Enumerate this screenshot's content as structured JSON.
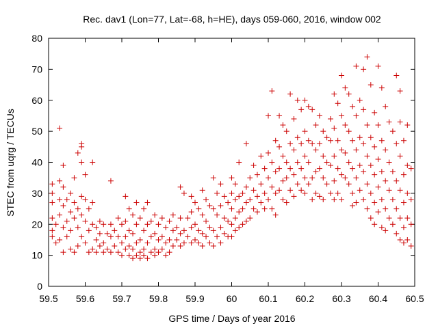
{
  "chart_data": {
    "type": "scatter",
    "title": "Rec. dav1 (Lon=77, Lat=-68, h=HE), days 059-060, 2016, window 002",
    "xlabel": "GPS time / Days of year 2016",
    "ylabel": "STEC from uqrg / TECUs",
    "xlim": [
      59.5,
      60.5
    ],
    "ylim": [
      0,
      80
    ],
    "xticks": [
      "59.5",
      "59.6",
      "59.7",
      "59.8",
      "59.9",
      "60",
      "60.1",
      "60.2",
      "60.3",
      "60.4",
      "60.5"
    ],
    "yticks": [
      "0",
      "10",
      "20",
      "30",
      "40",
      "50",
      "60",
      "70",
      "80"
    ],
    "grid": false,
    "legend": "none",
    "marker": "plus",
    "color": "#cc0000",
    "points": [
      [
        59.51,
        33
      ],
      [
        59.51,
        30
      ],
      [
        59.51,
        27
      ],
      [
        59.51,
        22
      ],
      [
        59.51,
        18
      ],
      [
        59.51,
        16
      ],
      [
        59.52,
        20
      ],
      [
        59.52,
        14
      ],
      [
        59.53,
        51
      ],
      [
        59.53,
        34
      ],
      [
        59.53,
        28
      ],
      [
        59.53,
        23
      ],
      [
        59.53,
        15
      ],
      [
        59.54,
        39
      ],
      [
        59.54,
        32
      ],
      [
        59.54,
        26
      ],
      [
        59.54,
        19
      ],
      [
        59.54,
        11
      ],
      [
        59.55,
        28
      ],
      [
        59.55,
        21
      ],
      [
        59.55,
        16
      ],
      [
        59.56,
        30
      ],
      [
        59.56,
        24
      ],
      [
        59.56,
        18
      ],
      [
        59.56,
        12
      ],
      [
        59.57,
        35
      ],
      [
        59.57,
        27
      ],
      [
        59.57,
        22
      ],
      [
        59.57,
        11
      ],
      [
        59.58,
        43
      ],
      [
        59.58,
        25
      ],
      [
        59.58,
        19
      ],
      [
        59.58,
        13
      ],
      [
        59.59,
        46
      ],
      [
        59.59,
        45
      ],
      [
        59.59,
        40
      ],
      [
        59.59,
        29
      ],
      [
        59.59,
        23
      ],
      [
        59.59,
        16
      ],
      [
        59.6,
        36
      ],
      [
        59.6,
        28
      ],
      [
        59.6,
        21
      ],
      [
        59.6,
        14
      ],
      [
        59.61,
        25
      ],
      [
        59.61,
        18
      ],
      [
        59.61,
        11
      ],
      [
        59.62,
        40
      ],
      [
        59.62,
        27
      ],
      [
        59.62,
        20
      ],
      [
        59.62,
        12
      ],
      [
        59.63,
        19
      ],
      [
        59.63,
        15
      ],
      [
        59.63,
        11
      ],
      [
        59.64,
        21
      ],
      [
        59.64,
        17
      ],
      [
        59.64,
        13
      ],
      [
        59.65,
        20
      ],
      [
        59.65,
        14
      ],
      [
        59.65,
        11
      ],
      [
        59.66,
        17
      ],
      [
        59.66,
        12
      ],
      [
        59.67,
        34
      ],
      [
        59.67,
        20
      ],
      [
        59.67,
        16
      ],
      [
        59.67,
        11
      ],
      [
        59.68,
        18
      ],
      [
        59.68,
        13
      ],
      [
        59.69,
        22
      ],
      [
        59.69,
        16
      ],
      [
        59.69,
        11
      ],
      [
        59.7,
        20
      ],
      [
        59.7,
        14
      ],
      [
        59.7,
        10
      ],
      [
        59.71,
        29
      ],
      [
        59.71,
        21
      ],
      [
        59.71,
        16
      ],
      [
        59.71,
        12
      ],
      [
        59.72,
        25
      ],
      [
        59.72,
        18
      ],
      [
        59.72,
        13
      ],
      [
        59.72,
        10
      ],
      [
        59.73,
        23
      ],
      [
        59.73,
        17
      ],
      [
        59.73,
        12
      ],
      [
        59.73,
        9
      ],
      [
        59.74,
        27
      ],
      [
        59.74,
        20
      ],
      [
        59.74,
        14
      ],
      [
        59.74,
        10
      ],
      [
        59.75,
        22
      ],
      [
        59.75,
        15
      ],
      [
        59.75,
        11
      ],
      [
        59.75,
        9
      ],
      [
        59.76,
        25
      ],
      [
        59.76,
        18
      ],
      [
        59.76,
        12
      ],
      [
        59.76,
        10
      ],
      [
        59.77,
        27
      ],
      [
        59.77,
        20
      ],
      [
        59.77,
        14
      ],
      [
        59.77,
        9
      ],
      [
        59.78,
        21
      ],
      [
        59.78,
        16
      ],
      [
        59.78,
        11
      ],
      [
        59.79,
        23
      ],
      [
        59.79,
        17
      ],
      [
        59.79,
        12
      ],
      [
        59.79,
        10
      ],
      [
        59.8,
        20
      ],
      [
        59.8,
        15
      ],
      [
        59.8,
        11
      ],
      [
        59.81,
        22
      ],
      [
        59.81,
        16
      ],
      [
        59.81,
        12
      ],
      [
        59.82,
        19
      ],
      [
        59.82,
        14
      ],
      [
        59.82,
        10
      ],
      [
        59.83,
        21
      ],
      [
        59.83,
        15
      ],
      [
        59.83,
        11
      ],
      [
        59.84,
        23
      ],
      [
        59.84,
        18
      ],
      [
        59.84,
        13
      ],
      [
        59.85,
        19
      ],
      [
        59.85,
        15
      ],
      [
        59.86,
        32
      ],
      [
        59.86,
        22
      ],
      [
        59.86,
        17
      ],
      [
        59.86,
        13
      ],
      [
        59.87,
        30
      ],
      [
        59.87,
        18
      ],
      [
        59.87,
        14
      ],
      [
        59.88,
        22
      ],
      [
        59.88,
        16
      ],
      [
        59.89,
        29
      ],
      [
        59.89,
        24
      ],
      [
        59.89,
        19
      ],
      [
        59.89,
        14
      ],
      [
        59.9,
        27
      ],
      [
        59.9,
        20
      ],
      [
        59.9,
        15
      ],
      [
        59.91,
        25
      ],
      [
        59.91,
        18
      ],
      [
        59.91,
        14
      ],
      [
        59.92,
        31
      ],
      [
        59.92,
        23
      ],
      [
        59.92,
        17
      ],
      [
        59.92,
        13
      ],
      [
        59.93,
        28
      ],
      [
        59.93,
        21
      ],
      [
        59.93,
        16
      ],
      [
        59.94,
        26
      ],
      [
        59.94,
        19
      ],
      [
        59.94,
        14
      ],
      [
        59.95,
        35
      ],
      [
        59.95,
        25
      ],
      [
        59.95,
        18
      ],
      [
        59.95,
        13
      ],
      [
        59.96,
        30
      ],
      [
        59.96,
        23
      ],
      [
        59.96,
        16
      ],
      [
        59.97,
        33
      ],
      [
        59.97,
        26
      ],
      [
        59.97,
        19
      ],
      [
        59.97,
        14
      ],
      [
        59.98,
        29
      ],
      [
        59.98,
        22
      ],
      [
        59.98,
        17
      ],
      [
        59.99,
        27
      ],
      [
        59.99,
        21
      ],
      [
        59.99,
        16
      ],
      [
        60.0,
        35
      ],
      [
        60.0,
        30
      ],
      [
        60.0,
        25
      ],
      [
        60.0,
        20
      ],
      [
        60.0,
        16
      ],
      [
        60.01,
        33
      ],
      [
        60.01,
        28
      ],
      [
        60.01,
        22
      ],
      [
        60.01,
        18
      ],
      [
        60.02,
        40
      ],
      [
        60.02,
        29
      ],
      [
        60.02,
        24
      ],
      [
        60.02,
        19
      ],
      [
        60.03,
        30
      ],
      [
        60.03,
        25
      ],
      [
        60.03,
        20
      ],
      [
        60.04,
        46
      ],
      [
        60.04,
        32
      ],
      [
        60.04,
        27
      ],
      [
        60.04,
        21
      ],
      [
        60.05,
        35
      ],
      [
        60.05,
        28
      ],
      [
        60.05,
        22
      ],
      [
        60.06,
        39
      ],
      [
        60.06,
        31
      ],
      [
        60.06,
        25
      ],
      [
        60.07,
        36
      ],
      [
        60.07,
        29
      ],
      [
        60.07,
        24
      ],
      [
        60.08,
        42
      ],
      [
        60.08,
        33
      ],
      [
        60.08,
        27
      ],
      [
        60.09,
        38
      ],
      [
        60.09,
        30
      ],
      [
        60.09,
        25
      ],
      [
        60.1,
        55
      ],
      [
        60.1,
        43
      ],
      [
        60.1,
        35
      ],
      [
        60.1,
        28
      ],
      [
        60.11,
        63
      ],
      [
        60.11,
        40
      ],
      [
        60.11,
        32
      ],
      [
        60.11,
        25
      ],
      [
        60.12,
        47
      ],
      [
        60.12,
        37
      ],
      [
        60.12,
        30
      ],
      [
        60.12,
        23
      ],
      [
        60.13,
        55
      ],
      [
        60.13,
        45
      ],
      [
        60.13,
        38
      ],
      [
        60.13,
        31
      ],
      [
        60.14,
        52
      ],
      [
        60.14,
        42
      ],
      [
        60.14,
        34
      ],
      [
        60.14,
        28
      ],
      [
        60.15,
        50
      ],
      [
        60.15,
        40
      ],
      [
        60.15,
        35
      ],
      [
        60.15,
        27
      ],
      [
        60.16,
        62
      ],
      [
        60.16,
        46
      ],
      [
        60.16,
        38
      ],
      [
        60.16,
        31
      ],
      [
        60.17,
        54
      ],
      [
        60.17,
        44
      ],
      [
        60.17,
        36
      ],
      [
        60.17,
        29
      ],
      [
        60.18,
        60
      ],
      [
        60.18,
        48
      ],
      [
        60.18,
        40
      ],
      [
        60.18,
        33
      ],
      [
        60.19,
        57
      ],
      [
        60.19,
        46
      ],
      [
        60.19,
        38
      ],
      [
        60.19,
        31
      ],
      [
        60.2,
        60
      ],
      [
        60.2,
        50
      ],
      [
        60.2,
        42
      ],
      [
        60.2,
        35
      ],
      [
        60.2,
        30
      ],
      [
        60.21,
        58
      ],
      [
        60.21,
        47
      ],
      [
        60.21,
        40
      ],
      [
        60.21,
        33
      ],
      [
        60.22,
        57
      ],
      [
        60.22,
        46
      ],
      [
        60.22,
        35
      ],
      [
        60.22,
        28
      ],
      [
        60.23,
        52
      ],
      [
        60.23,
        44
      ],
      [
        60.23,
        37
      ],
      [
        60.23,
        30
      ],
      [
        60.24,
        55
      ],
      [
        60.24,
        46
      ],
      [
        60.24,
        38
      ],
      [
        60.24,
        29
      ],
      [
        60.25,
        50
      ],
      [
        60.25,
        42
      ],
      [
        60.25,
        35
      ],
      [
        60.25,
        28
      ],
      [
        60.26,
        48
      ],
      [
        60.26,
        40
      ],
      [
        60.26,
        33
      ],
      [
        60.27,
        54
      ],
      [
        60.27,
        47
      ],
      [
        60.27,
        39
      ],
      [
        60.27,
        30
      ],
      [
        60.28,
        62
      ],
      [
        60.28,
        51
      ],
      [
        60.28,
        42
      ],
      [
        60.28,
        34
      ],
      [
        60.28,
        28
      ],
      [
        60.29,
        59
      ],
      [
        60.29,
        47
      ],
      [
        60.29,
        38
      ],
      [
        60.29,
        30
      ],
      [
        60.3,
        68
      ],
      [
        60.3,
        55
      ],
      [
        60.3,
        44
      ],
      [
        60.3,
        36
      ],
      [
        60.3,
        28
      ],
      [
        60.31,
        64
      ],
      [
        60.31,
        52
      ],
      [
        60.31,
        43
      ],
      [
        60.31,
        35
      ],
      [
        60.32,
        62
      ],
      [
        60.32,
        50
      ],
      [
        60.32,
        40
      ],
      [
        60.32,
        33
      ],
      [
        60.33,
        58
      ],
      [
        60.33,
        47
      ],
      [
        60.33,
        38
      ],
      [
        60.33,
        30
      ],
      [
        60.33,
        26
      ],
      [
        60.34,
        71
      ],
      [
        60.34,
        55
      ],
      [
        60.34,
        44
      ],
      [
        60.34,
        35
      ],
      [
        60.34,
        27
      ],
      [
        60.35,
        60
      ],
      [
        60.35,
        48
      ],
      [
        60.35,
        39
      ],
      [
        60.35,
        31
      ],
      [
        60.36,
        70
      ],
      [
        60.36,
        57
      ],
      [
        60.36,
        46
      ],
      [
        60.36,
        37
      ],
      [
        60.36,
        28
      ],
      [
        60.37,
        74
      ],
      [
        60.37,
        52
      ],
      [
        60.37,
        42
      ],
      [
        60.37,
        33
      ],
      [
        60.37,
        25
      ],
      [
        60.38,
        65
      ],
      [
        60.38,
        48
      ],
      [
        60.38,
        39
      ],
      [
        60.38,
        30
      ],
      [
        60.38,
        22
      ],
      [
        60.39,
        56
      ],
      [
        60.39,
        45
      ],
      [
        60.39,
        36
      ],
      [
        60.39,
        27
      ],
      [
        60.39,
        20
      ],
      [
        60.4,
        71
      ],
      [
        60.4,
        52
      ],
      [
        60.4,
        41
      ],
      [
        60.4,
        32
      ],
      [
        60.4,
        24
      ],
      [
        60.41,
        64
      ],
      [
        60.41,
        47
      ],
      [
        60.41,
        37
      ],
      [
        60.41,
        28
      ],
      [
        60.41,
        19
      ],
      [
        60.42,
        58
      ],
      [
        60.42,
        44
      ],
      [
        60.42,
        34
      ],
      [
        60.42,
        25
      ],
      [
        60.42,
        18
      ],
      [
        60.43,
        53
      ],
      [
        60.43,
        40
      ],
      [
        60.43,
        31
      ],
      [
        60.43,
        22
      ],
      [
        60.44,
        50
      ],
      [
        60.44,
        37
      ],
      [
        60.44,
        28
      ],
      [
        60.44,
        20
      ],
      [
        60.45,
        68
      ],
      [
        60.45,
        46
      ],
      [
        60.45,
        34
      ],
      [
        60.45,
        25
      ],
      [
        60.45,
        17
      ],
      [
        60.46,
        63
      ],
      [
        60.46,
        53
      ],
      [
        60.46,
        42
      ],
      [
        60.46,
        31
      ],
      [
        60.46,
        22
      ],
      [
        60.46,
        15
      ],
      [
        60.47,
        47
      ],
      [
        60.47,
        36
      ],
      [
        60.47,
        27
      ],
      [
        60.47,
        19
      ],
      [
        60.47,
        14
      ],
      [
        60.48,
        52
      ],
      [
        60.48,
        39
      ],
      [
        60.48,
        30
      ],
      [
        60.48,
        22
      ],
      [
        60.48,
        15
      ],
      [
        60.49,
        38
      ],
      [
        60.49,
        28
      ],
      [
        60.49,
        20
      ],
      [
        60.49,
        13
      ]
    ]
  }
}
